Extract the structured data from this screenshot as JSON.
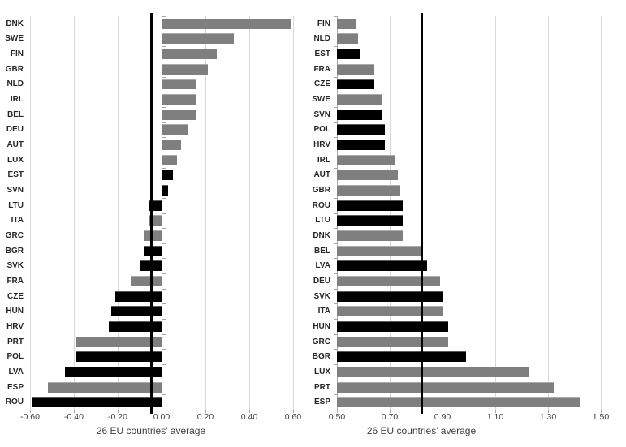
{
  "page": {
    "background": "#ffffff"
  },
  "colors": {
    "gray": "#7f7f7f",
    "black": "#000000",
    "gridline": "#d9d9d9",
    "axis": "#a6a6a6",
    "average_line": "#000000",
    "label_text": "#262626",
    "tick_text": "#3f3f3f"
  },
  "chart_data": [
    {
      "type": "bar",
      "orientation": "horizontal",
      "title": "",
      "xlabel": "26 EU countries’ average",
      "ylabel": "",
      "xlim": [
        -0.6,
        0.6
      ],
      "xticks": [
        -0.6,
        -0.4,
        -0.2,
        0.0,
        0.2,
        0.4,
        0.6
      ],
      "xtick_labels": [
        "-0.60",
        "-0.40",
        "-0.20",
        "0.00",
        "0.20",
        "0.40",
        "0.60"
      ],
      "grid": true,
      "legend_position": "none",
      "average_line_value": -0.05,
      "categories": [
        "DNK",
        "SWE",
        "FIN",
        "GBR",
        "NLD",
        "IRL",
        "BEL",
        "DEU",
        "AUT",
        "LUX",
        "EST",
        "SVN",
        "LTU",
        "ITA",
        "GRC",
        "BGR",
        "SVK",
        "FRA",
        "CZE",
        "HUN",
        "HRV",
        "PRT",
        "POL",
        "LVA",
        "ESP",
        "ROU"
      ],
      "values": [
        0.59,
        0.33,
        0.25,
        0.21,
        0.16,
        0.16,
        0.16,
        0.12,
        0.09,
        0.07,
        0.05,
        0.03,
        -0.06,
        -0.06,
        -0.08,
        -0.08,
        -0.1,
        -0.14,
        -0.21,
        -0.23,
        -0.24,
        -0.39,
        -0.39,
        -0.44,
        -0.52,
        -0.59
      ],
      "bar_colors": [
        "gray",
        "gray",
        "gray",
        "gray",
        "gray",
        "gray",
        "gray",
        "gray",
        "gray",
        "gray",
        "black",
        "black",
        "black",
        "gray",
        "gray",
        "black",
        "black",
        "gray",
        "black",
        "black",
        "black",
        "gray",
        "black",
        "black",
        "gray",
        "black"
      ]
    },
    {
      "type": "bar",
      "orientation": "horizontal",
      "title": "",
      "xlabel": "26 EU countries’ average",
      "ylabel": "",
      "xlim": [
        0.5,
        1.5
      ],
      "xticks": [
        0.5,
        0.7,
        0.9,
        1.1,
        1.3,
        1.5
      ],
      "xtick_labels": [
        "0.50",
        "0.70",
        "0.90",
        "1.10",
        "1.30",
        "1.50"
      ],
      "grid": true,
      "legend_position": "none",
      "average_line_value": 0.82,
      "categories": [
        "FIN",
        "NLD",
        "EST",
        "FRA",
        "CZE",
        "SWE",
        "SVN",
        "POL",
        "HRV",
        "IRL",
        "AUT",
        "GBR",
        "ROU",
        "LTU",
        "DNK",
        "BEL",
        "LVA",
        "DEU",
        "SVK",
        "ITA",
        "HUN",
        "GRC",
        "BGR",
        "LUX",
        "PRT",
        "ESP"
      ],
      "values": [
        0.57,
        0.58,
        0.59,
        0.64,
        0.64,
        0.67,
        0.67,
        0.68,
        0.68,
        0.72,
        0.73,
        0.74,
        0.75,
        0.75,
        0.75,
        0.82,
        0.84,
        0.89,
        0.9,
        0.9,
        0.92,
        0.92,
        0.99,
        1.23,
        1.32,
        1.42
      ],
      "bar_colors": [
        "gray",
        "gray",
        "black",
        "gray",
        "black",
        "gray",
        "black",
        "black",
        "black",
        "gray",
        "gray",
        "gray",
        "black",
        "black",
        "gray",
        "gray",
        "black",
        "gray",
        "black",
        "gray",
        "black",
        "gray",
        "black",
        "gray",
        "gray",
        "gray"
      ]
    }
  ]
}
